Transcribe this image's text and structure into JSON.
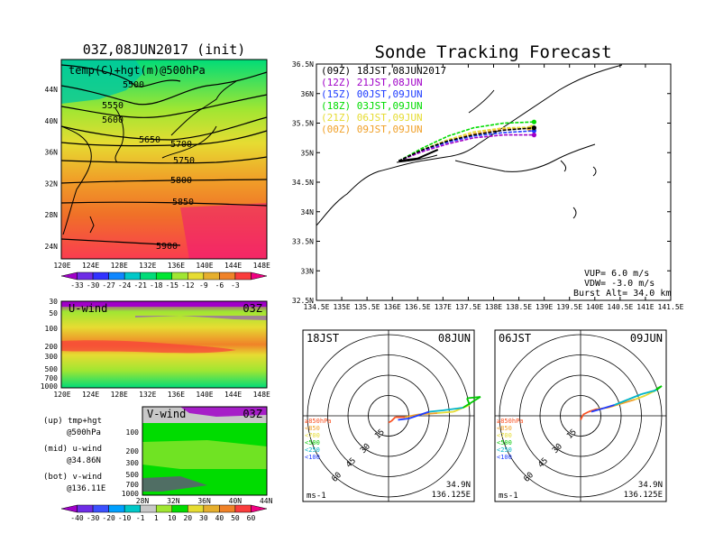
{
  "left_top": {
    "title": "03Z,08JUN2017 (init)",
    "overlay_label": "temp(C)+hgt(m)@500hPa",
    "lat_ticks": [
      "44N",
      "40N",
      "36N",
      "32N",
      "28N",
      "24N"
    ],
    "lon_ticks": [
      "120E",
      "124E",
      "128E",
      "132E",
      "136E",
      "140E",
      "144E",
      "148E"
    ],
    "contour_labels": [
      "5500",
      "5550",
      "5600",
      "5650",
      "5700",
      "5750",
      "5800",
      "5850",
      "5900"
    ],
    "colorbar_ticks": [
      "-33",
      "-30",
      "-27",
      "-24",
      "-21",
      "-18",
      "-15",
      "-12",
      "-9",
      "-6",
      "-3"
    ],
    "colorbar_colors": [
      "#a000c8",
      "#6e2ce6",
      "#3232ff",
      "#0f87ff",
      "#00c8c8",
      "#00dc78",
      "#00e632",
      "#a0e632",
      "#e6dc32",
      "#e6af2d",
      "#f08228",
      "#fa3c3c",
      "#f00082"
    ]
  },
  "left_mid": {
    "label": "U-wind",
    "time": "03Z",
    "p_ticks": [
      "30",
      "50",
      "100",
      "200",
      "300",
      "500",
      "700",
      "1000"
    ],
    "lon_ticks": [
      "120E",
      "124E",
      "128E",
      "132E",
      "136E",
      "140E",
      "144E",
      "148E"
    ]
  },
  "left_bot": {
    "label": "V-wind",
    "time": "03Z",
    "p_ticks": [
      "100",
      "200",
      "300",
      "500",
      "700",
      "1000"
    ],
    "lat_ticks": [
      "28N",
      "32N",
      "36N",
      "40N",
      "44N"
    ],
    "legend_lines": [
      "(up) tmp+hgt",
      "@500hPa",
      "(mid) u-wind",
      "@34.86N",
      "(bot) v-wind",
      "@136.11E"
    ],
    "colorbar_ticks": [
      "-40",
      "-30",
      "-20",
      "-10",
      "-1",
      "1",
      "10",
      "20",
      "30",
      "40",
      "50",
      "60"
    ],
    "colorbar_colors": [
      "#a000c8",
      "#6e2ce6",
      "#3c50ff",
      "#00a0ff",
      "#00c8c8",
      "#c8c8c8",
      "#a0e632",
      "#00dc00",
      "#e6dc32",
      "#e6af2d",
      "#f08228",
      "#fa3c3c",
      "#f00082"
    ]
  },
  "chart_data": [
    {
      "type": "line",
      "title": "Sonde Tracking Forecast",
      "xlim": [
        134.5,
        141.5
      ],
      "ylim": [
        32.5,
        36.5
      ],
      "x_ticks": [
        "134.5E",
        "135E",
        "135.5E",
        "136E",
        "136.5E",
        "137E",
        "137.5E",
        "138E",
        "138.5E",
        "139E",
        "139.5E",
        "140E",
        "140.5E",
        "141E",
        "141.5E"
      ],
      "y_ticks": [
        "32.5N",
        "33N",
        "33.5N",
        "34N",
        "34.5N",
        "35N",
        "35.5N",
        "36N",
        "36.5N"
      ],
      "series": [
        {
          "name": "(09Z)  18JST,08JUN2017",
          "color": "#000000",
          "x": [
            136.125,
            136.6,
            137.1,
            137.6,
            138.2,
            138.8
          ],
          "y": [
            34.86,
            35.05,
            35.2,
            35.3,
            35.38,
            35.42
          ]
        },
        {
          "name": "(12Z)  21JST,08JUN",
          "color": "#a000c8",
          "x": [
            136.125,
            136.6,
            137.1,
            137.6,
            138.2,
            138.8
          ],
          "y": [
            34.86,
            35.02,
            35.15,
            35.25,
            35.3,
            35.3
          ]
        },
        {
          "name": "(15Z)  00JST,09JUN",
          "color": "#1e3cff",
          "x": [
            136.125,
            136.6,
            137.1,
            137.6,
            138.2,
            138.8
          ],
          "y": [
            34.86,
            35.04,
            35.18,
            35.28,
            35.34,
            35.37
          ]
        },
        {
          "name": "(18Z)  03JST,09JUN",
          "color": "#00dc00",
          "x": [
            136.125,
            136.6,
            137.1,
            137.6,
            138.2,
            138.8
          ],
          "y": [
            34.86,
            35.08,
            35.28,
            35.42,
            35.5,
            35.52
          ]
        },
        {
          "name": "(21Z)  06JST,09JUN",
          "color": "#e6dc32",
          "x": [
            136.125,
            136.6,
            137.1,
            137.6,
            138.2,
            138.75
          ],
          "y": [
            34.86,
            35.05,
            35.22,
            35.35,
            35.42,
            35.43
          ]
        },
        {
          "name": "(00Z)  09JST,09JUN",
          "color": "#f0a028",
          "x": [
            136.125,
            136.6,
            137.1,
            137.6,
            138.2,
            138.7
          ],
          "y": [
            34.86,
            35.05,
            35.2,
            35.32,
            35.4,
            35.41
          ]
        }
      ],
      "annotations": [
        "VUP=  6.0 m/s",
        "VDW= -3.0 m/s",
        "Burst Alt= 34.0 km"
      ]
    },
    {
      "type": "line",
      "title_left": "18JST",
      "title_right": "08JUN",
      "ring_labels": [
        "15",
        "30",
        "45",
        "60"
      ],
      "level_legend": [
        {
          "label": "≥850hPa",
          "color": "#fa5020"
        },
        {
          "label": "<850",
          "color": "#f0a028"
        },
        {
          "label": "<700",
          "color": "#e6dc32"
        },
        {
          "label": "<500",
          "color": "#00c800"
        },
        {
          "label": "<250",
          "color": "#00b4c8"
        },
        {
          "label": "<100",
          "color": "#1e3cff"
        }
      ],
      "unit": "ms-1",
      "location": [
        "34.9N",
        "136.125E"
      ],
      "hodograph_uv": [
        [
          0,
          -5
        ],
        [
          2,
          -4
        ],
        [
          5,
          -1
        ],
        [
          12,
          -1
        ],
        [
          22,
          1
        ],
        [
          36,
          2
        ],
        [
          48,
          3
        ],
        [
          60,
          8
        ],
        [
          58,
          13
        ],
        [
          68,
          14
        ],
        [
          55,
          6
        ],
        [
          40,
          4
        ],
        [
          30,
          3
        ],
        [
          15,
          -2
        ],
        [
          7,
          -3
        ]
      ]
    },
    {
      "type": "line",
      "title_left": "06JST",
      "title_right": "09JUN",
      "ring_labels": [
        "15",
        "30",
        "45",
        "60"
      ],
      "level_legend": [
        {
          "label": "≥850hPa",
          "color": "#fa5020"
        },
        {
          "label": "<850",
          "color": "#f0a028"
        },
        {
          "label": "<700",
          "color": "#e6dc32"
        },
        {
          "label": "<500",
          "color": "#00c800"
        },
        {
          "label": "<250",
          "color": "#00b4c8"
        },
        {
          "label": "<100",
          "color": "#1e3cff"
        }
      ],
      "unit": "ms-1",
      "location": [
        "34.9N",
        "136.125E"
      ],
      "hodograph_uv": [
        [
          0,
          -3
        ],
        [
          2,
          1
        ],
        [
          6,
          3
        ],
        [
          12,
          5
        ],
        [
          20,
          6
        ],
        [
          30,
          9
        ],
        [
          40,
          12
        ],
        [
          48,
          15
        ],
        [
          54,
          18
        ],
        [
          58,
          21
        ],
        [
          60,
          22
        ],
        [
          56,
          19
        ],
        [
          45,
          16
        ],
        [
          35,
          12
        ],
        [
          25,
          8
        ],
        [
          15,
          5
        ],
        [
          8,
          3
        ]
      ]
    }
  ]
}
